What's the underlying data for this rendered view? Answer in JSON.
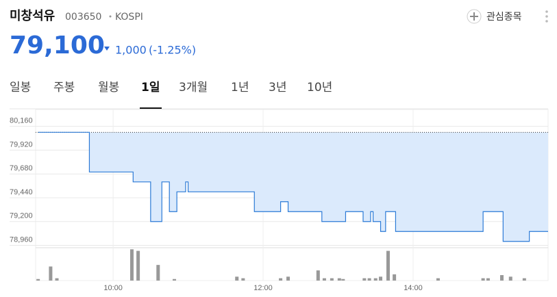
{
  "header": {
    "name": "미창석유",
    "code": "003650",
    "market": "KOSPI",
    "watch": "관심종목",
    "price": "79,100",
    "change": "1,000",
    "change_pct": "(-1.25%)"
  },
  "tabs": [
    "일봉",
    "주봉",
    "월봉",
    "1일",
    "3개월",
    "1년",
    "3년",
    "10년"
  ],
  "chart_data": {
    "type": "line",
    "step": true,
    "color": "#2b7ad6",
    "fill": "#dbeafc",
    "x": [
      540,
      581,
      616,
      630,
      639,
      645,
      651,
      658,
      660,
      713,
      734,
      740,
      767,
      786,
      800,
      806,
      808,
      814,
      818,
      826,
      896,
      912,
      933
    ],
    "values": [
      80100,
      79700,
      79600,
      79200,
      79600,
      79300,
      79500,
      79600,
      79500,
      79300,
      79400,
      79300,
      79200,
      79300,
      79200,
      79300,
      79200,
      79100,
      79300,
      79100,
      79300,
      79000,
      79100
    ],
    "prev_close": 80100,
    "xlim": [
      538,
      948
    ],
    "xticks": [
      {
        "value": 600,
        "label": "10:00"
      },
      {
        "value": 720,
        "label": "12:00"
      },
      {
        "value": 840,
        "label": "14:00"
      }
    ],
    "ylim": [
      78950,
      80330
    ],
    "yticks": [
      {
        "value": 80160,
        "label": "80,160"
      },
      {
        "value": 79920,
        "label": "79,920"
      },
      {
        "value": 79680,
        "label": "79,680"
      },
      {
        "value": 79440,
        "label": "79,440"
      },
      {
        "value": 79200,
        "label": "79,200"
      },
      {
        "value": 78960,
        "label": "78,960"
      }
    ],
    "grid": true,
    "volume": {
      "color": "#999999",
      "x": [
        540,
        550,
        555,
        615,
        620,
        636,
        649,
        699,
        704,
        734,
        740,
        764,
        769,
        775,
        781,
        784,
        801,
        805,
        810,
        814,
        820,
        825,
        860,
        896,
        900,
        911,
        918,
        929
      ],
      "values": [
        2,
        18,
        3,
        40,
        38,
        20,
        2,
        5,
        3,
        3,
        5,
        13,
        3,
        3,
        3,
        2,
        3,
        3,
        3,
        5,
        38,
        8,
        3,
        3,
        3,
        7,
        5,
        3
      ],
      "ylim": [
        0,
        42
      ]
    }
  }
}
